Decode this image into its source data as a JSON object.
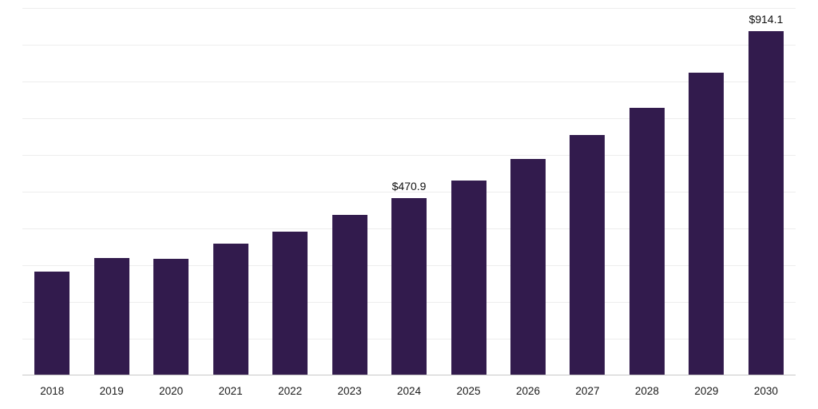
{
  "chart_data": {
    "type": "bar",
    "title": "",
    "xlabel": "",
    "ylabel": "",
    "categories": [
      "2018",
      "2019",
      "2020",
      "2021",
      "2022",
      "2023",
      "2024",
      "2025",
      "2026",
      "2027",
      "2028",
      "2029",
      "2030"
    ],
    "values": [
      276,
      312,
      310,
      350,
      382,
      426,
      470.9,
      517,
      575,
      638,
      710,
      804,
      914.1
    ],
    "labels": [
      "",
      "",
      "",
      "",
      "",
      "",
      "$470.9",
      "",
      "",
      "",
      "",
      "",
      "$914.1"
    ],
    "ylim": [
      0,
      975
    ],
    "grid": true,
    "grid_count": 10,
    "legend": "none",
    "bar_color": "#321b4d",
    "gridline_color": "#ededed",
    "axis_line_color": "#c9c9c9",
    "label_color": "#111111"
  }
}
